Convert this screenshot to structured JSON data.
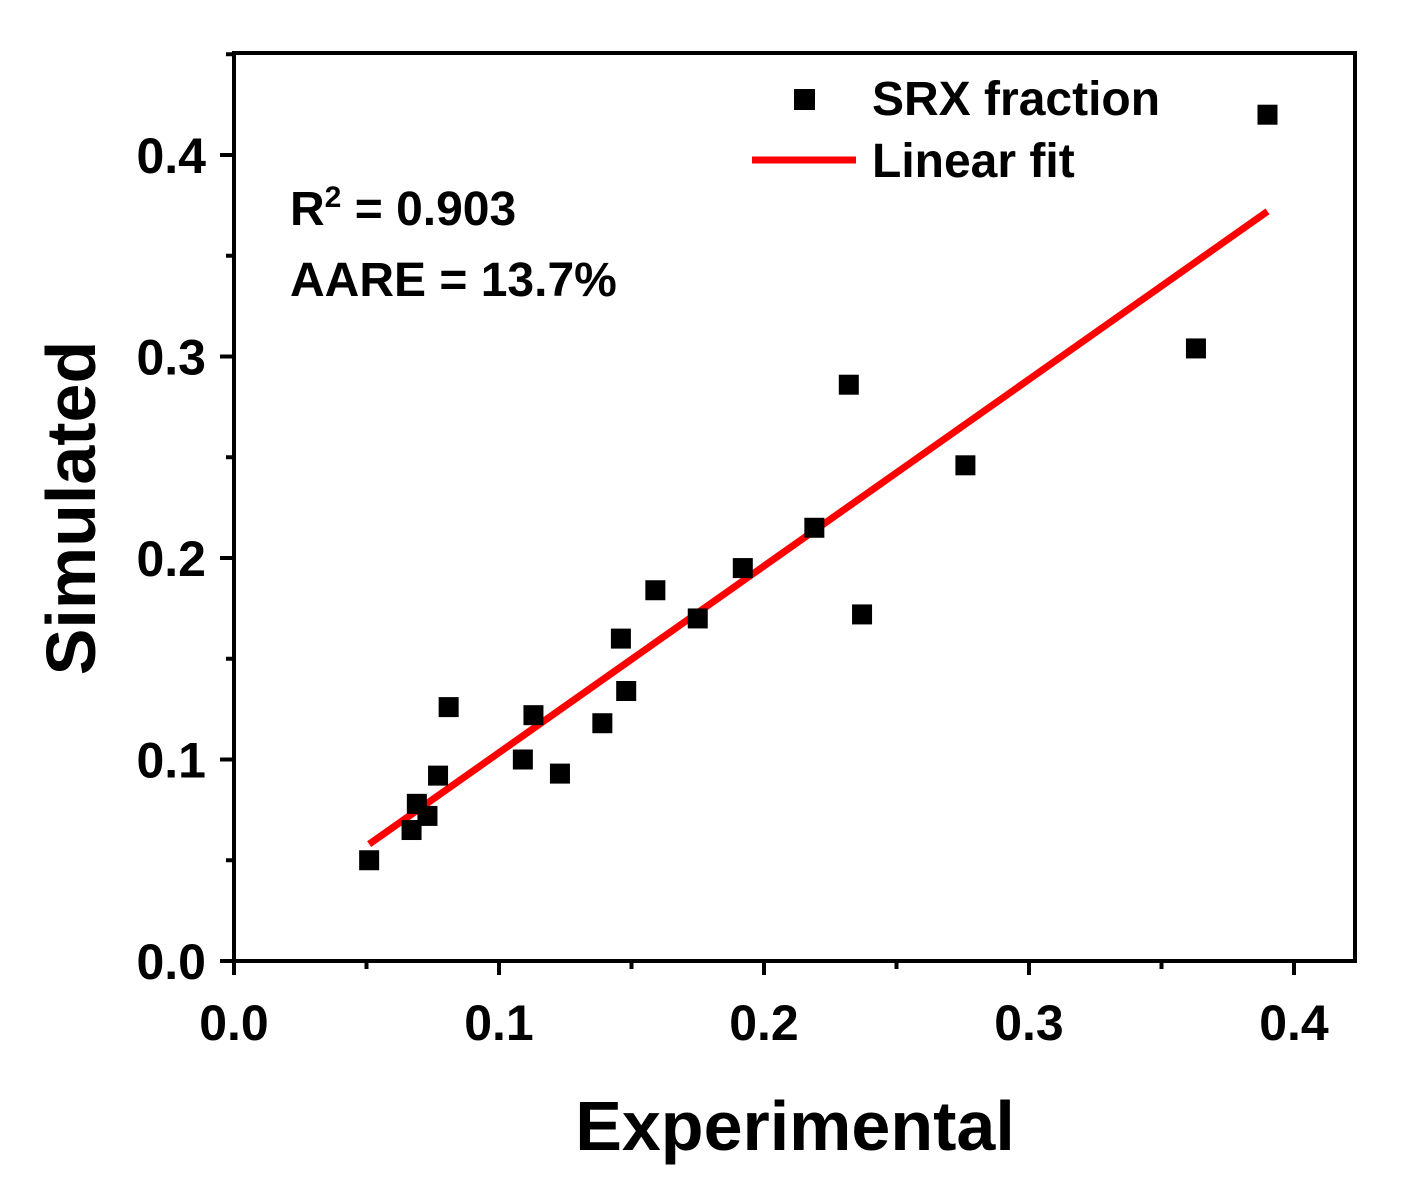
{
  "chart_data": {
    "type": "scatter",
    "title": "",
    "xlabel": "Experimental",
    "ylabel": "Simulated",
    "xlim": [
      0.0,
      0.42
    ],
    "ylim": [
      0.0,
      0.45
    ],
    "xticks": [
      0.0,
      0.1,
      0.2,
      0.3,
      0.4
    ],
    "xtick_labels": [
      "0.0",
      "0.1",
      "0.2",
      "0.3",
      "0.4"
    ],
    "yticks": [
      0.0,
      0.1,
      0.2,
      0.3,
      0.4
    ],
    "ytick_labels": [
      "0.0",
      "0.1",
      "0.2",
      "0.3",
      "0.4"
    ],
    "grid": false,
    "legend_position": "top-right",
    "series": [
      {
        "name": "SRX fraction",
        "type": "scatter",
        "marker": "square",
        "color": "#000000",
        "points": [
          {
            "x": 0.051,
            "y": 0.05
          },
          {
            "x": 0.067,
            "y": 0.065
          },
          {
            "x": 0.069,
            "y": 0.078
          },
          {
            "x": 0.073,
            "y": 0.072
          },
          {
            "x": 0.077,
            "y": 0.092
          },
          {
            "x": 0.081,
            "y": 0.126
          },
          {
            "x": 0.109,
            "y": 0.1
          },
          {
            "x": 0.113,
            "y": 0.122
          },
          {
            "x": 0.123,
            "y": 0.093
          },
          {
            "x": 0.139,
            "y": 0.118
          },
          {
            "x": 0.146,
            "y": 0.16
          },
          {
            "x": 0.148,
            "y": 0.134
          },
          {
            "x": 0.159,
            "y": 0.184
          },
          {
            "x": 0.175,
            "y": 0.17
          },
          {
            "x": 0.192,
            "y": 0.195
          },
          {
            "x": 0.219,
            "y": 0.215
          },
          {
            "x": 0.232,
            "y": 0.286
          },
          {
            "x": 0.237,
            "y": 0.172
          },
          {
            "x": 0.276,
            "y": 0.246
          },
          {
            "x": 0.363,
            "y": 0.304
          },
          {
            "x": 0.39,
            "y": 0.42
          }
        ]
      },
      {
        "name": "Linear fit",
        "type": "line",
        "color": "#ff0000",
        "x": [
          0.051,
          0.39
        ],
        "y": [
          0.058,
          0.372
        ]
      }
    ],
    "annotations": {
      "r2_label": "R",
      "r2_superscript": "2",
      "r2_value": " = 0.903",
      "aare": "AARE = 13.7%"
    }
  }
}
